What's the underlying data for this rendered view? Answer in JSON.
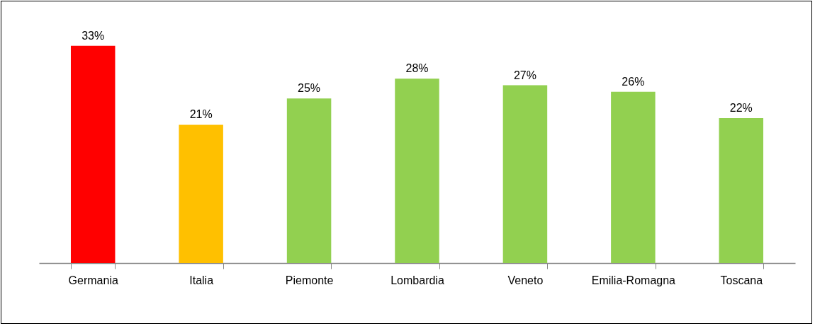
{
  "chart_data": {
    "type": "bar",
    "categories": [
      "Germania",
      "Italia",
      "Piemonte",
      "Lombardia",
      "Veneto",
      "Emilia-Romagna",
      "Toscana"
    ],
    "values": [
      33,
      21,
      25,
      28,
      27,
      26,
      22
    ],
    "colors": [
      "#ff0000",
      "#ffc000",
      "#92d050",
      "#92d050",
      "#92d050",
      "#92d050",
      "#92d050"
    ],
    "value_labels": [
      "33%",
      "21%",
      "25%",
      "28%",
      "27%",
      "26%",
      "22%"
    ],
    "grid": false
  }
}
